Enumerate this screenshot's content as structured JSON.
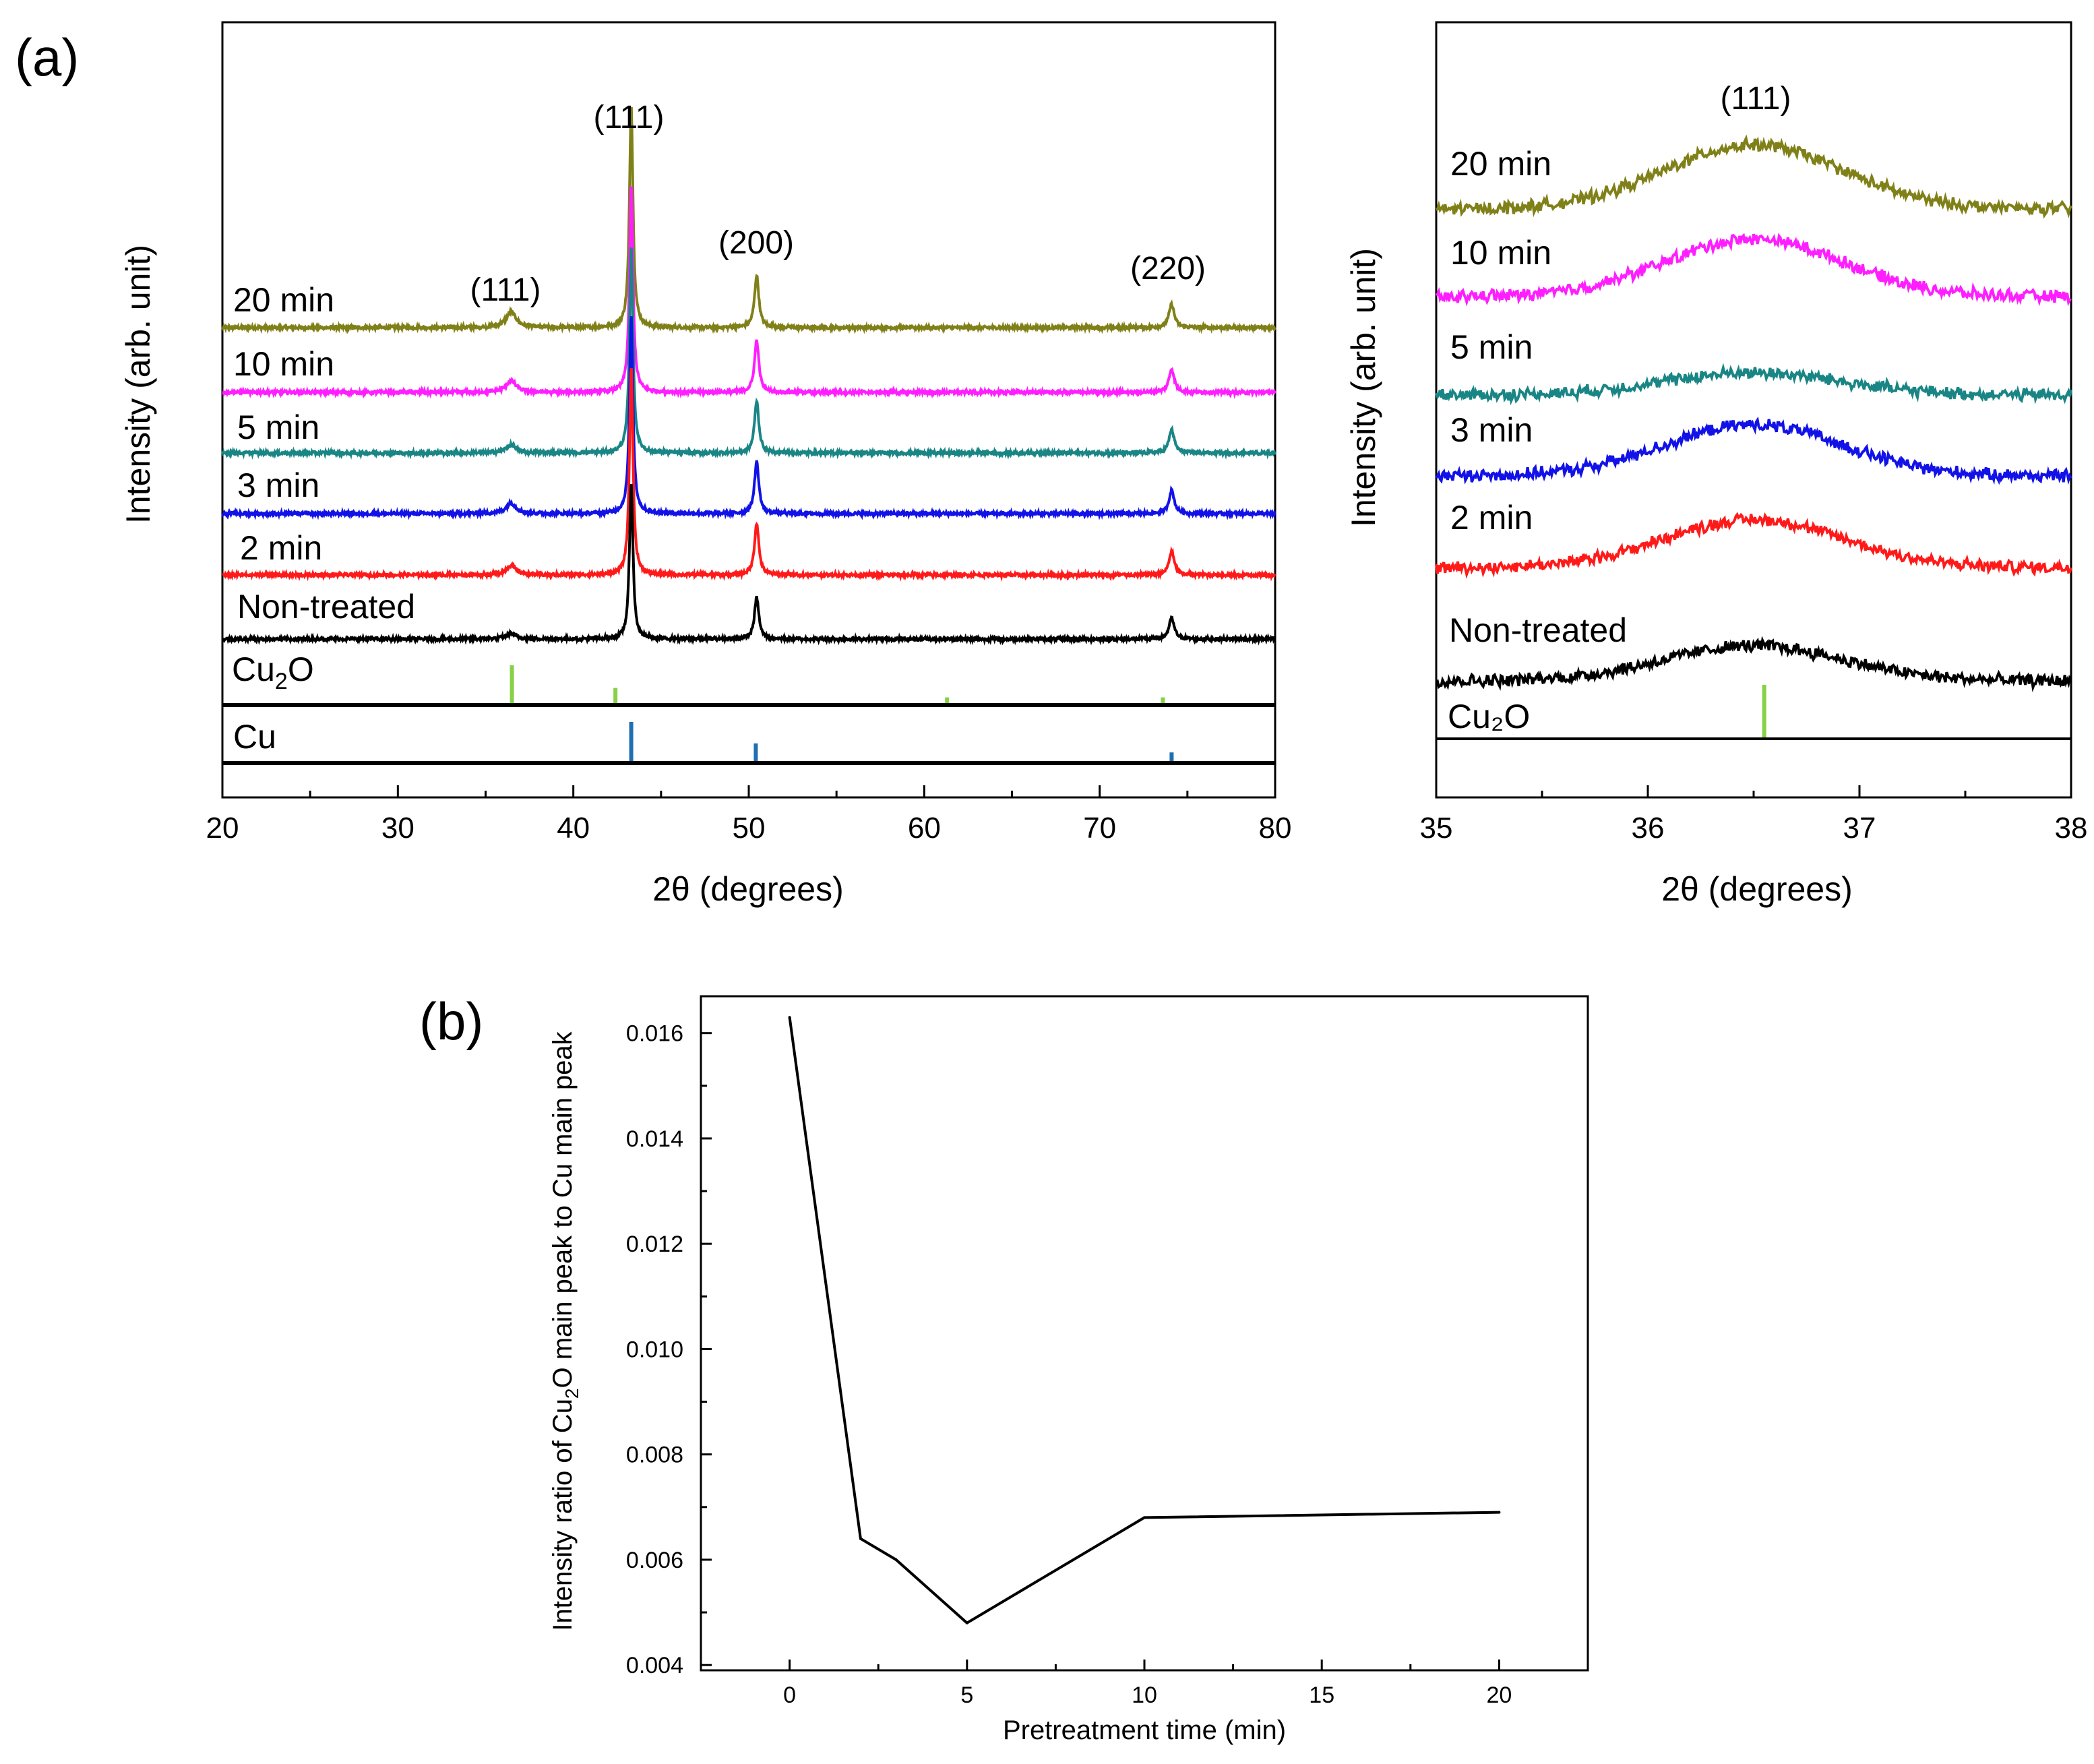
{
  "figure": {
    "panel_a_label": "(a)",
    "panel_b_label": "(b)"
  },
  "colors": {
    "20 min": "#808019",
    "10 min": "#ff1eff",
    "5 min": "#1a8585",
    "3 min": "#1212e8",
    "2 min": "#ff1a1a",
    "Non-treated": "#000000",
    "Cu2O": "#86d146",
    "Cu": "#1f6fb2"
  },
  "chart_data": [
    {
      "id": "a-left",
      "type": "line",
      "xlabel": "2θ (degrees)",
      "ylabel": "Intensity (arb. unit)",
      "xlim": [
        20,
        80
      ],
      "xticks": [
        20,
        30,
        40,
        50,
        60,
        70,
        80
      ],
      "grid": false,
      "series": [
        {
          "name": "20 min",
          "label": "20 min",
          "color": "#808019",
          "cu2o_111": 0.3,
          "cu111": 4.3,
          "cu200": 1.0,
          "cu220": 0.45
        },
        {
          "name": "10 min",
          "label": "10 min",
          "color": "#ff1eff",
          "cu2o_111": 0.22,
          "cu111": 4.0,
          "cu200": 1.0,
          "cu220": 0.45
        },
        {
          "name": "5 min",
          "label": "5 min",
          "color": "#1a8585",
          "cu2o_111": 0.15,
          "cu111": 4.0,
          "cu200": 1.0,
          "cu220": 0.45
        },
        {
          "name": "3 min",
          "label": "3 min",
          "color": "#1212e8",
          "cu2o_111": 0.2,
          "cu111": 3.8,
          "cu200": 1.0,
          "cu220": 0.45
        },
        {
          "name": "2 min",
          "label": "2 min",
          "color": "#ff1a1a",
          "cu2o_111": 0.18,
          "cu111": 4.0,
          "cu200": 1.0,
          "cu220": 0.45
        },
        {
          "name": "Non-treated",
          "label": "Non-treated",
          "color": "#000000",
          "cu2o_111": 0.1,
          "cu111": 3.0,
          "cu200": 0.8,
          "cu220": 0.4
        }
      ],
      "peak_annotations": [
        "(111)",
        "(111)",
        "(200)",
        "(220)"
      ],
      "references": [
        {
          "name": "Cu2O",
          "label_main": "Cu",
          "label_sub": "2",
          "label_end": "O",
          "color": "#86d146",
          "lines": [
            {
              "x": 36.5,
              "h": 1.0
            },
            {
              "x": 42.4,
              "h": 0.4
            },
            {
              "x": 61.3,
              "h": 0.15
            },
            {
              "x": 73.6,
              "h": 0.15
            }
          ]
        },
        {
          "name": "Cu",
          "label": "Cu",
          "color": "#1f6fb2",
          "lines": [
            {
              "x": 43.3,
              "h": 1.0
            },
            {
              "x": 50.4,
              "h": 0.45
            },
            {
              "x": 74.1,
              "h": 0.22
            }
          ]
        }
      ]
    },
    {
      "id": "a-right",
      "type": "line",
      "xlabel": "2θ (degrees)",
      "ylabel": "Intensity (arb. unit)",
      "xlim": [
        35,
        38
      ],
      "xticks": [
        35,
        36,
        37,
        38
      ],
      "grid": false,
      "peak_annotations": [
        "(111)"
      ],
      "series": [
        {
          "name": "20 min",
          "label": "20 min",
          "color": "#808019",
          "amp": 1.0
        },
        {
          "name": "10 min",
          "label": "10 min",
          "color": "#ff1eff",
          "amp": 0.9
        },
        {
          "name": "5 min",
          "label": "5 min",
          "color": "#1a8585",
          "amp": 0.35
        },
        {
          "name": "3 min",
          "label": "3 min",
          "color": "#1212e8",
          "amp": 0.8
        },
        {
          "name": "2 min",
          "label": "2 min",
          "color": "#ff1a1a",
          "amp": 0.75
        },
        {
          "name": "Non-treated",
          "label": "Non-treated",
          "color": "#000000",
          "amp": 0.55
        }
      ],
      "reference": {
        "name": "Cu2O",
        "label": "Cu₂O",
        "color": "#86d146",
        "x": 36.55
      }
    },
    {
      "id": "b",
      "type": "line",
      "xlabel": "Pretreatment time (min)",
      "ylabel_parts": [
        "Intensity ratio of Cu",
        "2",
        "O main peak to Cu main peak"
      ],
      "xlim": [
        -2.5,
        22.5
      ],
      "ylim": [
        0.0039,
        0.0167
      ],
      "xticks": [
        0,
        5,
        10,
        15,
        20
      ],
      "yticks": [
        "0.004",
        "0.006",
        "0.008",
        "0.010",
        "0.012",
        "0.014",
        "0.016"
      ],
      "grid": false,
      "x": [
        0,
        2,
        3,
        5,
        10,
        20
      ],
      "y": [
        0.0163,
        0.0064,
        0.006,
        0.0048,
        0.0068,
        0.0069
      ]
    }
  ]
}
